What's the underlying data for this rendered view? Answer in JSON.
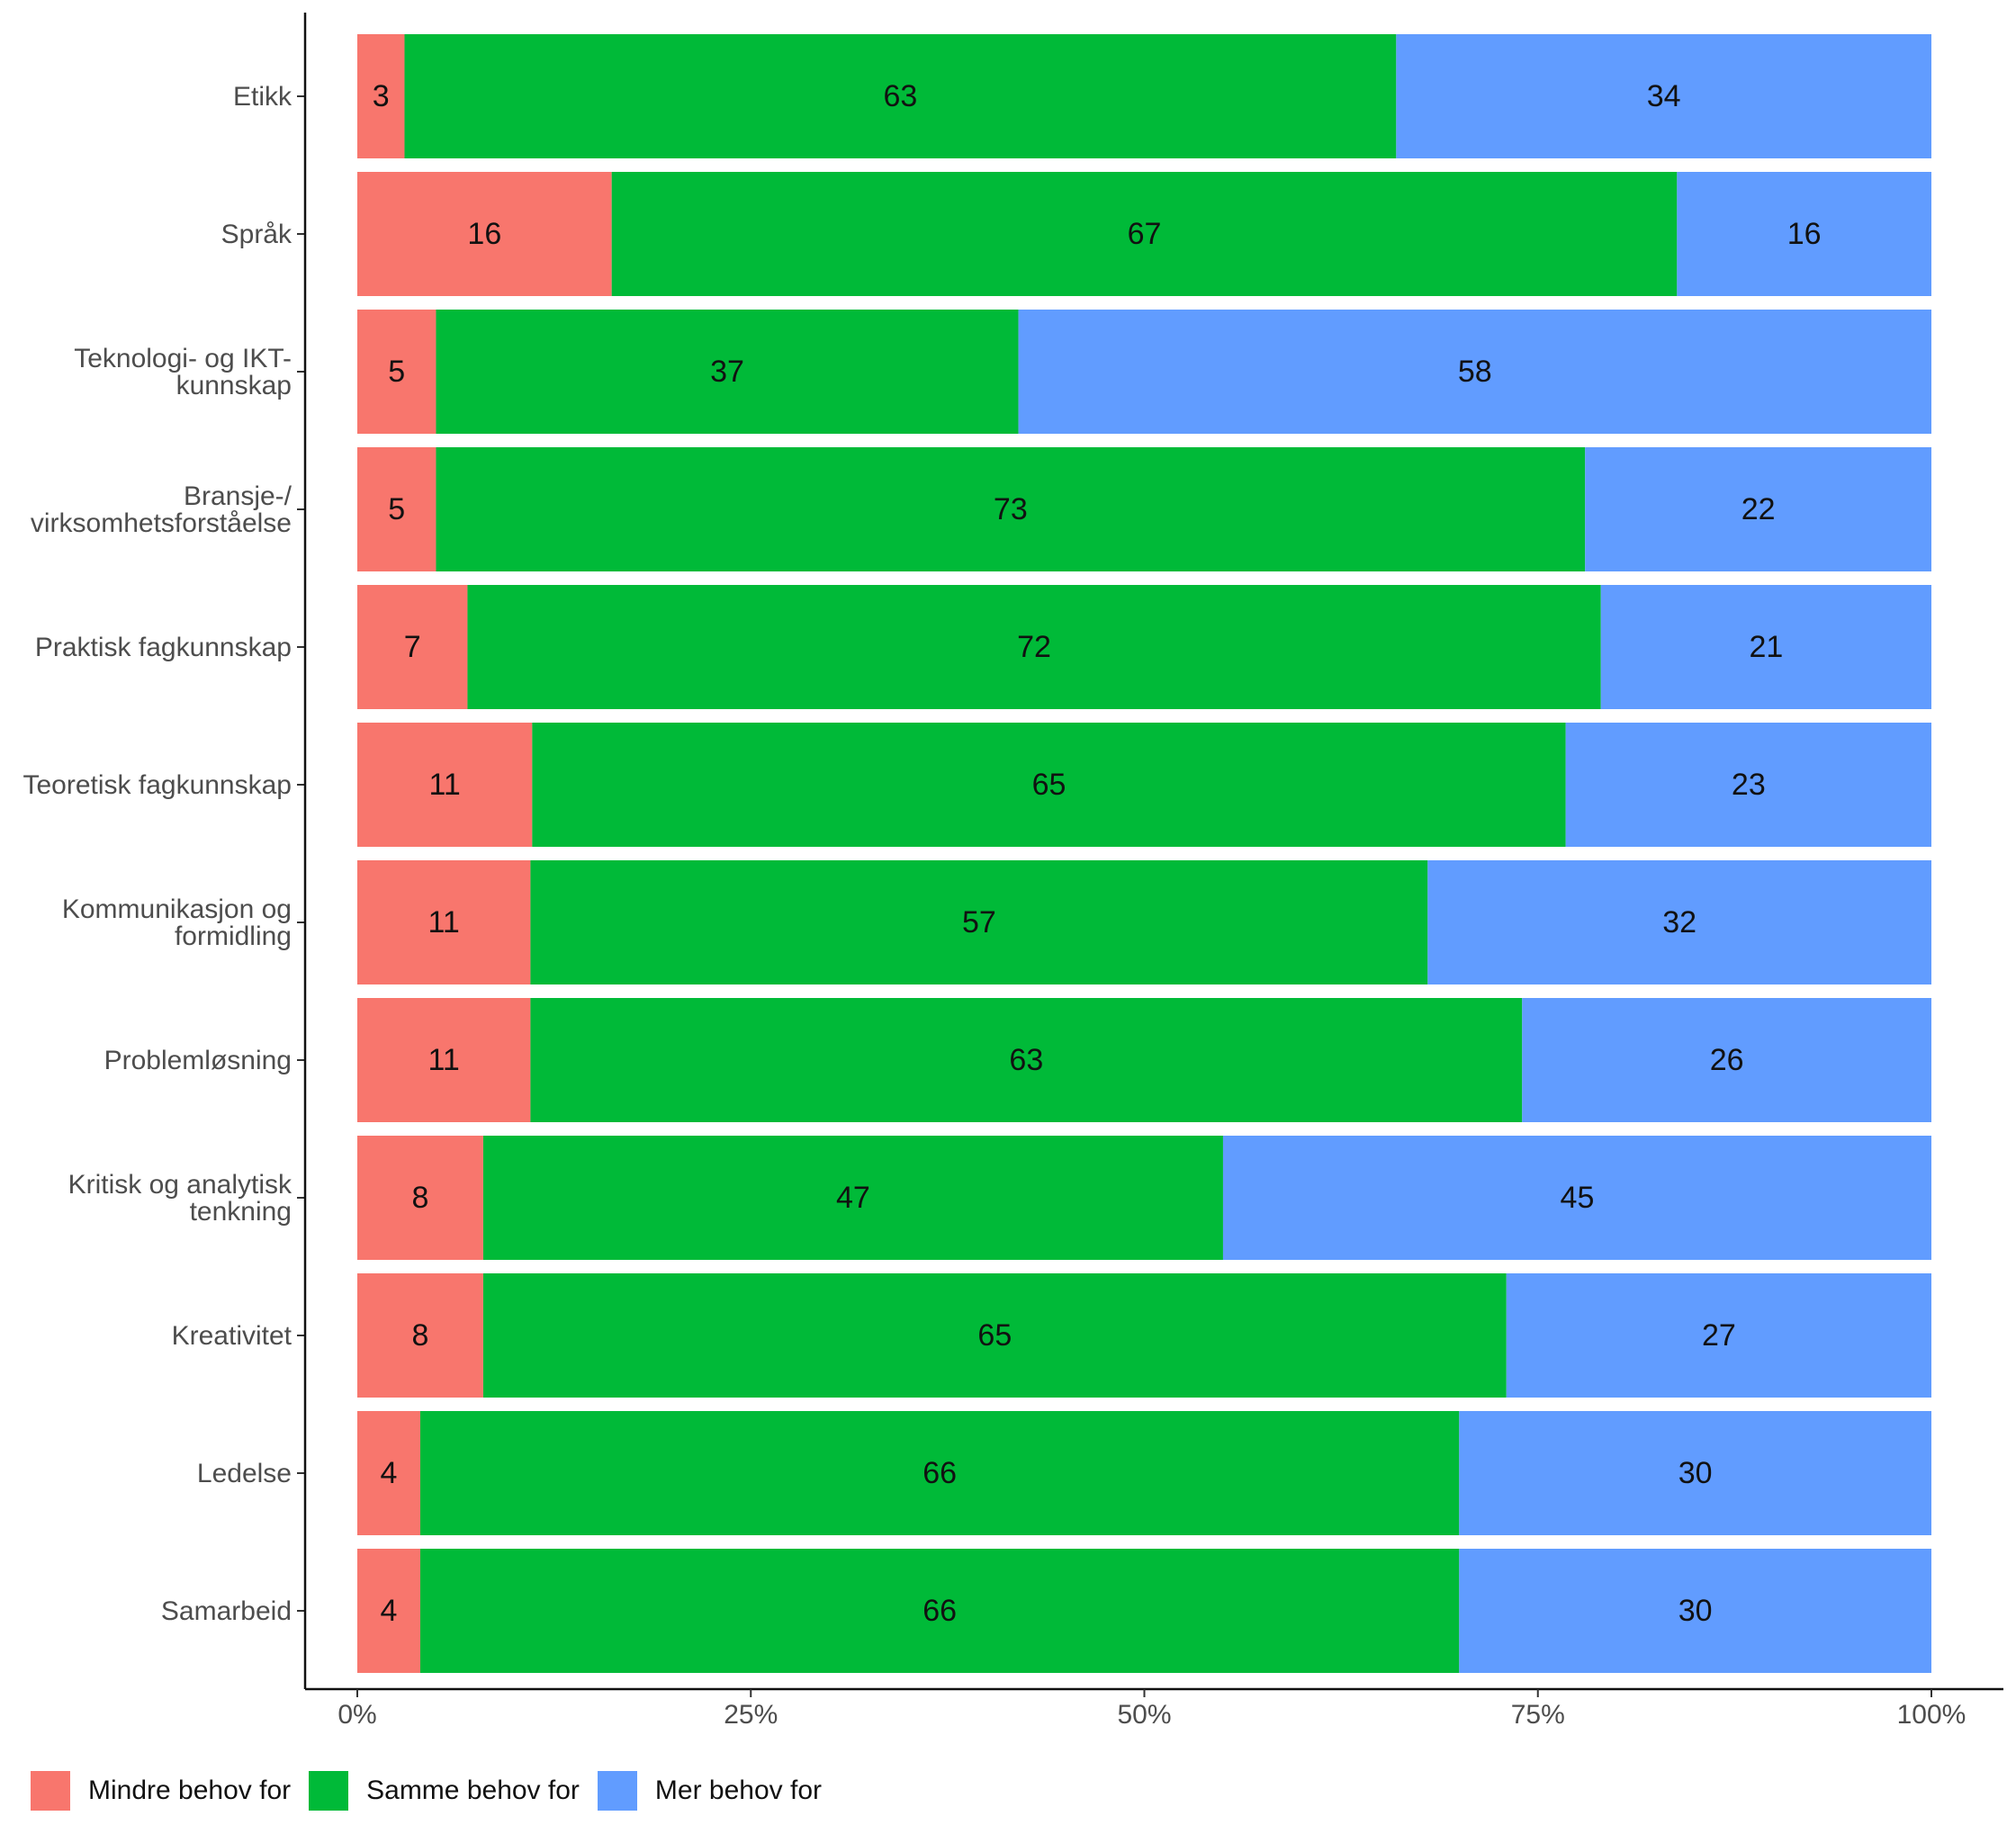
{
  "chart_data": {
    "type": "bar",
    "orientation": "horizontal",
    "stacked": true,
    "categories": [
      "Etikk",
      "Språk",
      "Teknologi- og IKT-\nkunnskap",
      "Bransje-/\nvirksomhetsforståelse",
      "Praktisk fagkunnskap",
      "Teoretisk fagkunnskap",
      "Kommunikasjon og\nformidling",
      "Problemløsning",
      "Kritisk og analytisk\ntenkning",
      "Kreativitet",
      "Ledelse",
      "Samarbeid"
    ],
    "series": [
      {
        "name": "Mindre behov for",
        "color": "#F8766D",
        "values": [
          3,
          16,
          5,
          5,
          7,
          11,
          11,
          11,
          8,
          8,
          4,
          4
        ]
      },
      {
        "name": "Samme behov for",
        "color": "#00BA38",
        "values": [
          63,
          67,
          37,
          73,
          72,
          65,
          57,
          63,
          47,
          65,
          66,
          66
        ]
      },
      {
        "name": "Mer behov for",
        "color": "#619CFF",
        "values": [
          34,
          16,
          58,
          22,
          21,
          23,
          32,
          26,
          45,
          27,
          30,
          30
        ]
      }
    ],
    "xlim": [
      0,
      100
    ],
    "x_ticks": [
      0,
      25,
      50,
      75,
      100
    ],
    "x_tick_labels": [
      "0%",
      "25%",
      "50%",
      "75%",
      "100%"
    ],
    "title": "",
    "xlabel": "",
    "ylabel": "",
    "grid": false,
    "legend_position": "bottom-left"
  }
}
